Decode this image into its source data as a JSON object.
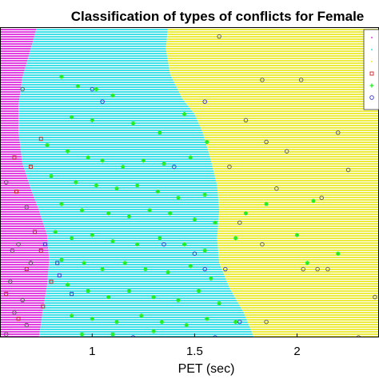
{
  "chart_data": {
    "type": "scatter",
    "title": "Classification of types of conflicts for Female",
    "xlabel": "PET (sec)",
    "ylabel": "",
    "xlim": [
      0.55,
      2.4
    ],
    "ylim": [
      0,
      1
    ],
    "x_ticks": [
      1,
      1.5,
      2
    ],
    "x_tick_labels": [
      "1",
      "1.5",
      "2"
    ],
    "grid": false,
    "legend_placement": "top-right",
    "regions": [
      {
        "color": "#e040e0",
        "label_visible": false
      },
      {
        "color": "#40e0e8",
        "label_visible": false
      },
      {
        "color": "#ecec40",
        "label_visible": false
      }
    ],
    "boundaries": [
      {
        "between": "magenta-cyan",
        "points": [
          [
            0.73,
            1.0
          ],
          [
            0.7,
            0.93
          ],
          [
            0.66,
            0.84
          ],
          [
            0.64,
            0.75
          ],
          [
            0.64,
            0.66
          ],
          [
            0.66,
            0.56
          ],
          [
            0.7,
            0.48
          ],
          [
            0.74,
            0.41
          ],
          [
            0.78,
            0.33
          ],
          [
            0.79,
            0.25
          ],
          [
            0.78,
            0.17
          ],
          [
            0.76,
            0.09
          ],
          [
            0.74,
            0.0
          ]
        ]
      },
      {
        "between": "cyan-yellow",
        "points": [
          [
            1.37,
            1.0
          ],
          [
            1.36,
            0.93
          ],
          [
            1.38,
            0.85
          ],
          [
            1.44,
            0.77
          ],
          [
            1.5,
            0.72
          ],
          [
            1.54,
            0.66
          ],
          [
            1.58,
            0.57
          ],
          [
            1.61,
            0.49
          ],
          [
            1.62,
            0.41
          ],
          [
            1.61,
            0.32
          ],
          [
            1.62,
            0.24
          ],
          [
            1.67,
            0.16
          ],
          [
            1.74,
            0.08
          ],
          [
            1.79,
            0.0
          ]
        ]
      }
    ],
    "series": [
      {
        "marker": "star",
        "color": "#22ee22",
        "points": [
          [
            0.85,
            0.84
          ],
          [
            0.93,
            0.81
          ],
          [
            1.02,
            0.8
          ],
          [
            1.1,
            0.78
          ],
          [
            0.9,
            0.71
          ],
          [
            1.0,
            0.7
          ],
          [
            1.2,
            0.69
          ],
          [
            1.33,
            0.66
          ],
          [
            1.45,
            0.72
          ],
          [
            0.78,
            0.62
          ],
          [
            0.88,
            0.6
          ],
          [
            0.98,
            0.58
          ],
          [
            1.05,
            0.57
          ],
          [
            1.15,
            0.55
          ],
          [
            1.25,
            0.57
          ],
          [
            1.35,
            0.56
          ],
          [
            1.48,
            0.58
          ],
          [
            1.56,
            0.63
          ],
          [
            0.8,
            0.52
          ],
          [
            0.92,
            0.5
          ],
          [
            1.02,
            0.49
          ],
          [
            1.12,
            0.48
          ],
          [
            1.22,
            0.49
          ],
          [
            1.32,
            0.47
          ],
          [
            1.42,
            0.45
          ],
          [
            1.55,
            0.46
          ],
          [
            1.85,
            0.43
          ],
          [
            2.08,
            0.44
          ],
          [
            0.85,
            0.43
          ],
          [
            0.95,
            0.41
          ],
          [
            1.08,
            0.4
          ],
          [
            1.18,
            0.39
          ],
          [
            1.28,
            0.41
          ],
          [
            1.38,
            0.4
          ],
          [
            1.5,
            0.38
          ],
          [
            1.6,
            0.37
          ],
          [
            1.75,
            0.4
          ],
          [
            0.82,
            0.34
          ],
          [
            0.9,
            0.32
          ],
          [
            1.0,
            0.33
          ],
          [
            1.1,
            0.31
          ],
          [
            1.22,
            0.3
          ],
          [
            1.33,
            0.32
          ],
          [
            1.45,
            0.3
          ],
          [
            1.55,
            0.28
          ],
          [
            1.7,
            0.32
          ],
          [
            2.0,
            0.33
          ],
          [
            0.85,
            0.25
          ],
          [
            0.96,
            0.24
          ],
          [
            1.05,
            0.22
          ],
          [
            1.16,
            0.24
          ],
          [
            1.26,
            0.22
          ],
          [
            1.37,
            0.21
          ],
          [
            1.48,
            0.23
          ],
          [
            1.58,
            0.19
          ],
          [
            2.05,
            0.24
          ],
          [
            2.2,
            0.27
          ],
          [
            0.88,
            0.17
          ],
          [
            0.98,
            0.15
          ],
          [
            1.08,
            0.13
          ],
          [
            1.18,
            0.15
          ],
          [
            1.3,
            0.13
          ],
          [
            1.42,
            0.12
          ],
          [
            1.52,
            0.15
          ],
          [
            1.62,
            0.11
          ],
          [
            0.9,
            0.07
          ],
          [
            1.0,
            0.06
          ],
          [
            1.12,
            0.05
          ],
          [
            1.24,
            0.07
          ],
          [
            1.34,
            0.05
          ],
          [
            1.46,
            0.04
          ],
          [
            1.56,
            0.06
          ],
          [
            1.7,
            0.05
          ],
          [
            0.95,
            0.01
          ],
          [
            1.1,
            0.01
          ],
          [
            1.3,
            0.02
          ]
        ]
      },
      {
        "marker": "circle",
        "color": "#3333cc",
        "points": [
          [
            1.0,
            0.8
          ],
          [
            1.05,
            0.76
          ],
          [
            1.55,
            0.76
          ],
          [
            1.4,
            0.55
          ],
          [
            1.35,
            0.3
          ],
          [
            1.5,
            0.27
          ],
          [
            1.55,
            0.22
          ],
          [
            1.65,
            0.22
          ],
          [
            1.72,
            0.05
          ],
          [
            1.6,
            0.0
          ],
          [
            1.2,
            0.0
          ]
        ]
      },
      {
        "marker": "circle",
        "color": "#555555",
        "points": [
          [
            1.62,
            0.97
          ],
          [
            1.83,
            0.83
          ],
          [
            2.02,
            0.83
          ],
          [
            2.4,
            0.85
          ],
          [
            1.75,
            0.7
          ],
          [
            1.85,
            0.63
          ],
          [
            2.2,
            0.66
          ],
          [
            1.95,
            0.6
          ],
          [
            1.67,
            0.55
          ],
          [
            2.25,
            0.54
          ],
          [
            1.9,
            0.48
          ],
          [
            2.12,
            0.45
          ],
          [
            1.72,
            0.37
          ],
          [
            1.83,
            0.3
          ],
          [
            2.03,
            0.22
          ],
          [
            2.1,
            0.22
          ],
          [
            2.15,
            0.22
          ],
          [
            2.38,
            0.13
          ],
          [
            1.85,
            0.05
          ],
          [
            2.3,
            0.0
          ],
          [
            0.66,
            0.8
          ],
          [
            0.58,
            0.5
          ],
          [
            0.68,
            0.42
          ],
          [
            0.64,
            0.3
          ],
          [
            0.61,
            0.28
          ],
          [
            0.7,
            0.24
          ],
          [
            0.6,
            0.18
          ],
          [
            0.66,
            0.12
          ],
          [
            0.62,
            0.08
          ],
          [
            0.68,
            0.04
          ],
          [
            0.58,
            0.01
          ]
        ]
      },
      {
        "marker": "square",
        "color": "#cc2222",
        "points": [
          [
            0.75,
            0.64
          ],
          [
            0.62,
            0.58
          ],
          [
            0.7,
            0.55
          ],
          [
            0.63,
            0.47
          ],
          [
            0.72,
            0.34
          ],
          [
            0.75,
            0.28
          ],
          [
            0.68,
            0.22
          ],
          [
            0.8,
            0.18
          ],
          [
            0.58,
            0.14
          ],
          [
            0.76,
            0.1
          ],
          [
            0.64,
            0.06
          ]
        ]
      },
      {
        "marker": "square",
        "color": "#3333cc",
        "points": [
          [
            0.77,
            0.3
          ],
          [
            0.83,
            0.24
          ],
          [
            0.84,
            0.2
          ],
          [
            0.9,
            0.14
          ]
        ]
      }
    ]
  }
}
